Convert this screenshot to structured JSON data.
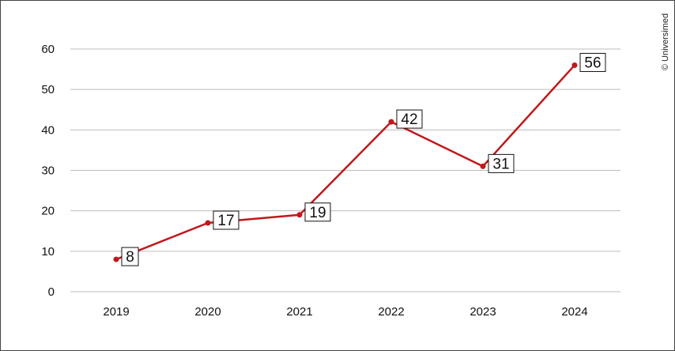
{
  "credit": "© Universimed",
  "chart_data": {
    "type": "line",
    "title": "",
    "xlabel": "",
    "ylabel": "",
    "x": [
      "2019",
      "2020",
      "2021",
      "2022",
      "2023",
      "2024"
    ],
    "series": [
      {
        "values": [
          8,
          17,
          19,
          42,
          31,
          56
        ]
      }
    ],
    "ylim": [
      0,
      60
    ],
    "yticks": [
      0,
      10,
      20,
      30,
      40,
      50,
      60
    ],
    "grid": true,
    "data_labels": true,
    "legend": "none",
    "colors": {
      "line": "#c0181b",
      "grid": "#bdbdbd",
      "text": "#111111"
    }
  }
}
